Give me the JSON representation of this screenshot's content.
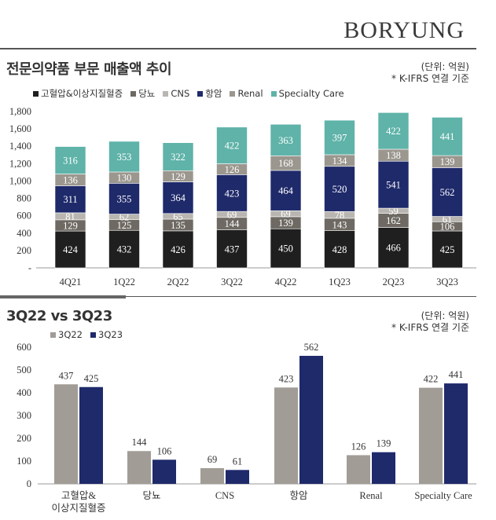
{
  "brand": "BORYUNG",
  "section1": {
    "title": "전문의약품 부문 매출액 추이",
    "unit": "(단위: 억원)",
    "note": "* K-IFRS 연결 기준"
  },
  "section2": {
    "title": "3Q22 vs 3Q23",
    "unit": "(단위: 억원)",
    "note": "* K-IFRS 연결 기준"
  },
  "colors": {
    "hypertension": "#1f1f1f",
    "diabetes": "#6e6a63",
    "cns": "#b9b6b1",
    "oncology": "#1f2a6b",
    "renal": "#9b978f",
    "specialty": "#5fb3a9",
    "q22": "#a19d96",
    "q23": "#1f2a6b"
  },
  "chart_data": [
    {
      "type": "bar",
      "stacked": true,
      "categories": [
        "4Q21",
        "1Q22",
        "2Q22",
        "3Q22",
        "4Q22",
        "1Q23",
        "2Q23",
        "3Q23"
      ],
      "series": [
        {
          "name": "고혈압&이상지질혈증",
          "values": [
            424,
            432,
            426,
            437,
            450,
            428,
            466,
            425
          ]
        },
        {
          "name": "당뇨",
          "values": [
            129,
            125,
            135,
            144,
            139,
            143,
            162,
            106
          ]
        },
        {
          "name": "CNS",
          "values": [
            81,
            62,
            65,
            69,
            69,
            78,
            59,
            61
          ]
        },
        {
          "name": "항암",
          "values": [
            311,
            355,
            364,
            423,
            464,
            520,
            541,
            562
          ]
        },
        {
          "name": "Renal",
          "values": [
            136,
            130,
            129,
            126,
            168,
            134,
            138,
            139
          ]
        },
        {
          "name": "Specialty Care",
          "values": [
            316,
            353,
            322,
            422,
            363,
            397,
            422,
            441
          ]
        }
      ],
      "yticks": [
        "1,800",
        "1,600",
        "1,400",
        "1,200",
        "1,000",
        "800",
        "600",
        "400",
        "200",
        "-"
      ],
      "ylim": [
        0,
        1800
      ],
      "legend": "top"
    },
    {
      "type": "bar",
      "categories": [
        "고혈압&\n이상지질혈증",
        "당뇨",
        "CNS",
        "항암",
        "Renal",
        "Specialty Care"
      ],
      "series": [
        {
          "name": "3Q22",
          "values": [
            437,
            144,
            69,
            423,
            126,
            422
          ]
        },
        {
          "name": "3Q23",
          "values": [
            425,
            106,
            61,
            562,
            139,
            441
          ]
        }
      ],
      "yticks": [
        "600",
        "500",
        "400",
        "300",
        "200",
        "100",
        "0"
      ],
      "ylim": [
        0,
        600
      ],
      "legend": "top-left"
    }
  ]
}
